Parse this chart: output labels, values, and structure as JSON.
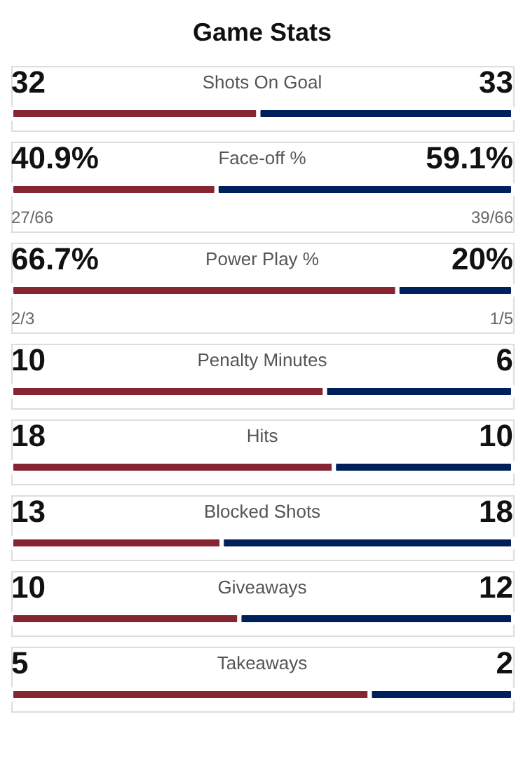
{
  "chart_data": [
    {
      "type": "bar",
      "orientation": "horizontal",
      "stacked": true,
      "title": "Game Stats",
      "categories": [
        "Shots On Goal"
      ],
      "series": [
        {
          "color": "#862633",
          "values": [
            32
          ],
          "value_labels": [
            "32"
          ]
        },
        {
          "color": "#00205b",
          "values": [
            33
          ],
          "value_labels": [
            "33"
          ]
        }
      ]
    },
    {
      "type": "bar",
      "orientation": "horizontal",
      "stacked": true,
      "categories": [
        "Face-off %"
      ],
      "series": [
        {
          "color": "#862633",
          "values": [
            40.9
          ],
          "value_labels": [
            "40.9%"
          ]
        },
        {
          "color": "#00205b",
          "values": [
            59.1
          ],
          "value_labels": [
            "59.1%"
          ]
        }
      ],
      "annotations": [
        "27/66",
        "39/66"
      ]
    },
    {
      "type": "bar",
      "orientation": "horizontal",
      "stacked": true,
      "categories": [
        "Power Play %"
      ],
      "series": [
        {
          "color": "#862633",
          "values": [
            66.7
          ],
          "value_labels": [
            "66.7%"
          ]
        },
        {
          "color": "#00205b",
          "values": [
            20
          ],
          "value_labels": [
            "20%"
          ]
        }
      ],
      "annotations": [
        "2/3",
        "1/5"
      ]
    },
    {
      "type": "bar",
      "orientation": "horizontal",
      "stacked": true,
      "categories": [
        "Penalty Minutes"
      ],
      "series": [
        {
          "color": "#862633",
          "values": [
            10
          ],
          "value_labels": [
            "10"
          ]
        },
        {
          "color": "#00205b",
          "values": [
            6
          ],
          "value_labels": [
            "6"
          ]
        }
      ]
    },
    {
      "type": "bar",
      "orientation": "horizontal",
      "stacked": true,
      "categories": [
        "Hits"
      ],
      "series": [
        {
          "color": "#862633",
          "values": [
            18
          ],
          "value_labels": [
            "18"
          ]
        },
        {
          "color": "#00205b",
          "values": [
            10
          ],
          "value_labels": [
            "10"
          ]
        }
      ]
    },
    {
      "type": "bar",
      "orientation": "horizontal",
      "stacked": true,
      "categories": [
        "Blocked Shots"
      ],
      "series": [
        {
          "color": "#862633",
          "values": [
            13
          ],
          "value_labels": [
            "13"
          ]
        },
        {
          "color": "#00205b",
          "values": [
            18
          ],
          "value_labels": [
            "18"
          ]
        }
      ]
    },
    {
      "type": "bar",
      "orientation": "horizontal",
      "stacked": true,
      "categories": [
        "Giveaways"
      ],
      "series": [
        {
          "color": "#862633",
          "values": [
            10
          ],
          "value_labels": [
            "10"
          ]
        },
        {
          "color": "#00205b",
          "values": [
            12
          ],
          "value_labels": [
            "12"
          ]
        }
      ]
    },
    {
      "type": "bar",
      "orientation": "horizontal",
      "stacked": true,
      "categories": [
        "Takeaways"
      ],
      "series": [
        {
          "color": "#862633",
          "values": [
            5
          ],
          "value_labels": [
            "5"
          ]
        },
        {
          "color": "#00205b",
          "values": [
            2
          ],
          "value_labels": [
            "2"
          ]
        }
      ]
    }
  ]
}
